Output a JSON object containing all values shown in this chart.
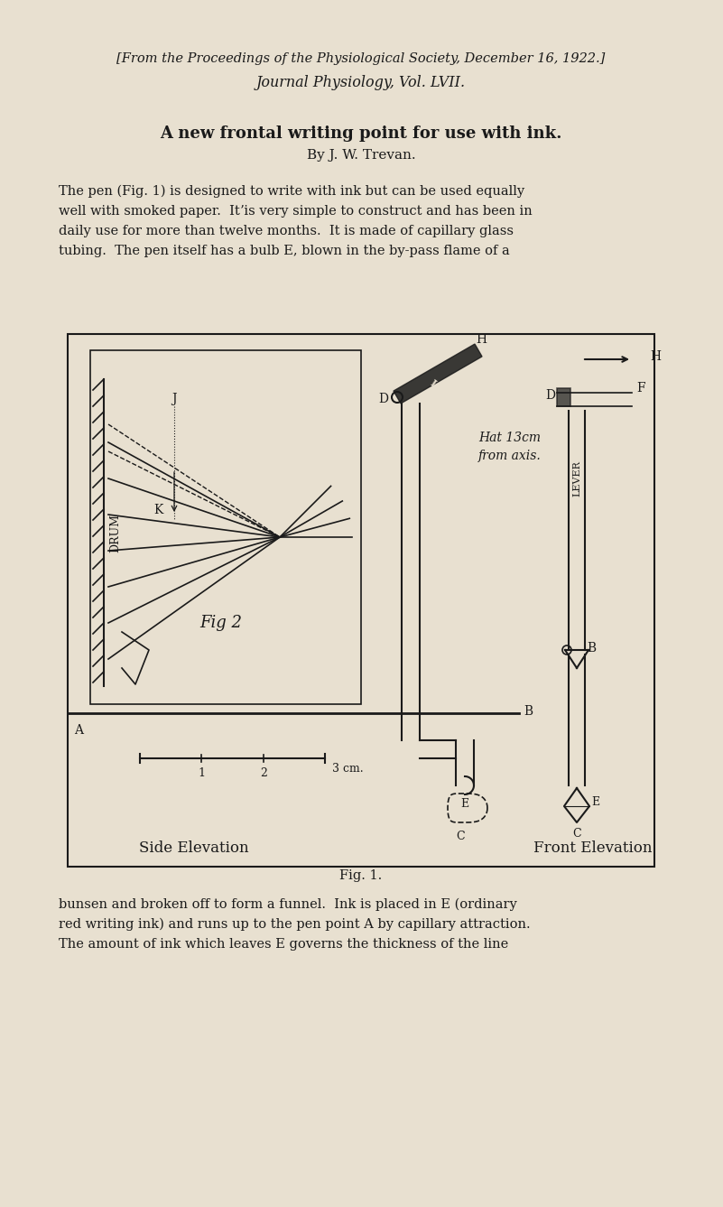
{
  "bg_color": "#e8e0d0",
  "text_color": "#1a1a1a",
  "line_color": "#1a1a1a",
  "header_line1": "[From the Proceedings of the Physiological Society, December 16, 1922.]",
  "header_line2": "Journal Physiology, Vol. LVII.",
  "title": "A new frontal writing point for use with ink.",
  "author": "By J. W. Trevan.",
  "para1": "The pen (Fig. 1) is designed to write with ink but can be used equally\nwell with smoked paper.  Itʼis very simple to construct and has been in\ndaily use for more than twelve months.  It is made of capillary glass\ntubing.  The pen itself has a bulb E, blown in the by-pass flame of a",
  "fig_caption": "Fig. 1.",
  "para2": "bunsen and broken off to form a funnel.  Ink is placed in E (ordinary\nred writing ink) and runs up to the pen point A by capillary attraction.\nThe amount of ink which leaves E governs the thickness of the line"
}
